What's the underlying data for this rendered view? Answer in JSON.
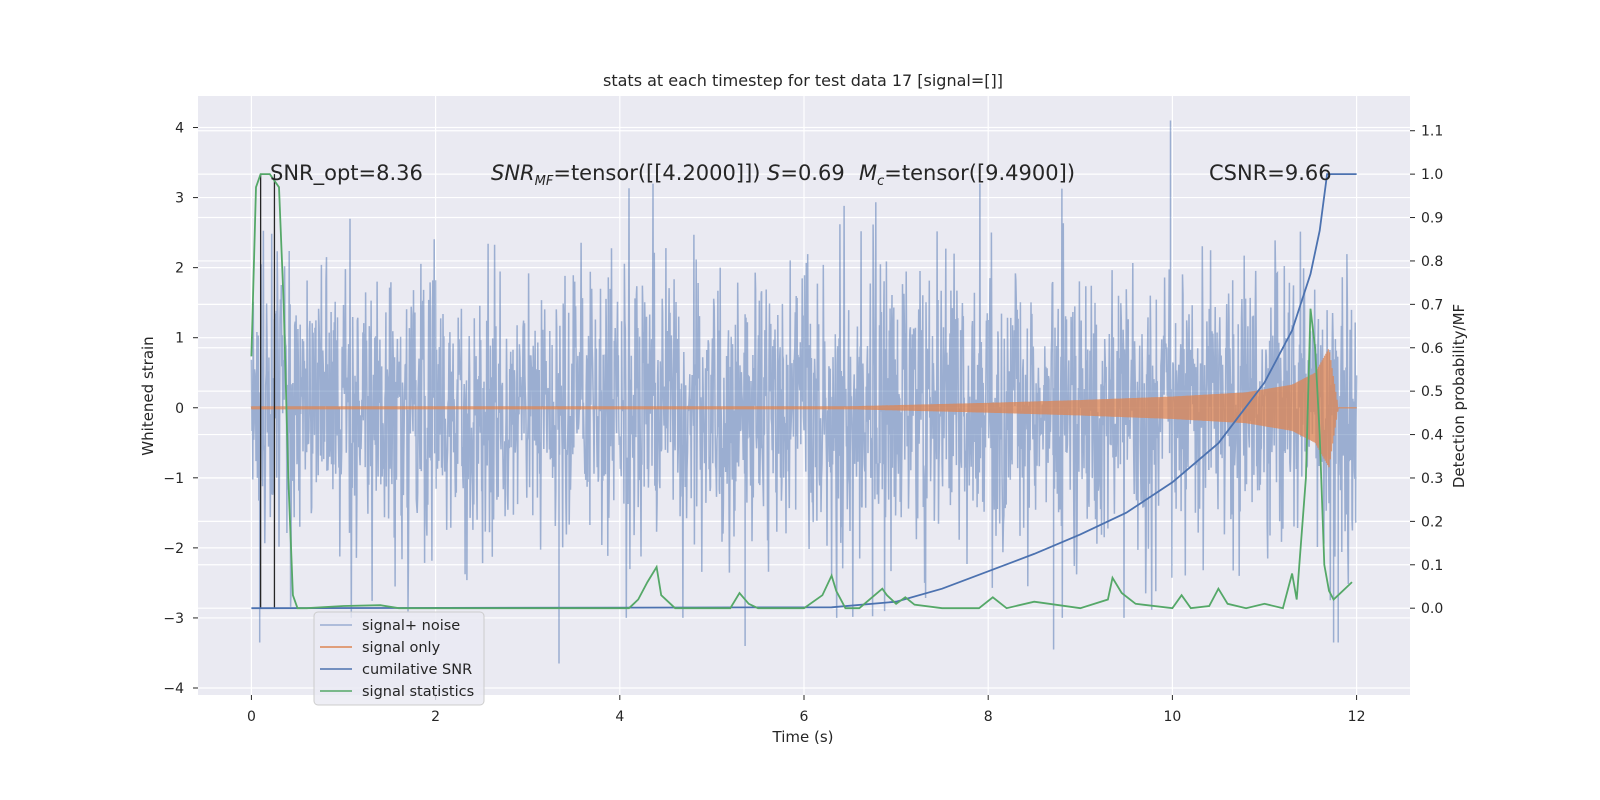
{
  "chart_data": {
    "type": "line",
    "title": "stats at each timestep for test data 17 [signal=[]]",
    "xlabel": "Time (s)",
    "ylabel": "Whitened strain",
    "ylabel_right": "Detection probability/MF",
    "xlim": [
      -0.58,
      12.58
    ],
    "ylim": [
      -4.1,
      4.45
    ],
    "ylim_right": [
      -0.2,
      1.18
    ],
    "x_ticks": [
      0,
      2,
      4,
      6,
      8,
      10,
      12
    ],
    "y_ticks": [
      -4,
      -3,
      -2,
      -1,
      0,
      1,
      2,
      3,
      4
    ],
    "y_ticks_right": [
      0.0,
      0.1,
      0.2,
      0.3,
      0.4,
      0.5,
      0.6,
      0.7,
      0.8,
      0.9,
      1.0,
      1.1
    ],
    "grid": true,
    "legend_position": "lower-left",
    "annotations": [
      {
        "text": "SNR_opt=8.36"
      },
      {
        "text_pre": "SNR",
        "text_sub": "MF",
        "text_post": "=tensor([[4.2000]])"
      },
      {
        "text_pre": "S",
        "text_sub": "",
        "text_post": "=0.69"
      },
      {
        "text_pre": "M",
        "text_sub": "c",
        "text_post": "=tensor([9.4900])"
      },
      {
        "text": "CSNR=9.66"
      }
    ],
    "vlines": [
      0.1,
      0.25
    ],
    "series": [
      {
        "name": "signal+ noise",
        "axis": "left",
        "color": "#4c72b0",
        "opacity": 0.5,
        "x_range": [
          0,
          12
        ],
        "band_envelope": [
          1.6,
          -1.6
        ],
        "sample_spikes": [
          {
            "x": 0.09,
            "y": -3.35
          },
          {
            "x": 3.34,
            "y": -3.65
          },
          {
            "x": 5.36,
            "y": -3.4
          },
          {
            "x": 8.71,
            "y": -3.45
          },
          {
            "x": 9.98,
            "y": 4.1
          },
          {
            "x": 11.75,
            "y": -3.35
          },
          {
            "x": 11.8,
            "y": -3.35
          }
        ]
      },
      {
        "name": "signal only",
        "axis": "left",
        "color": "#dd8452",
        "x_range": [
          0,
          12
        ],
        "envelope": {
          "x": [
            0,
            6.5,
            8,
            9,
            10,
            10.8,
            11.3,
            11.55,
            11.7,
            11.8,
            12
          ],
          "amplitude": [
            0.02,
            0.02,
            0.07,
            0.11,
            0.16,
            0.22,
            0.33,
            0.5,
            0.85,
            0.0,
            0.0
          ]
        }
      },
      {
        "name": "cumilative SNR",
        "axis": "right",
        "color": "#4c72b0",
        "x": [
          0,
          6.3,
          7.0,
          7.5,
          8.0,
          8.5,
          9.0,
          9.5,
          10.0,
          10.5,
          11.0,
          11.3,
          11.5,
          11.6,
          11.68,
          12.0
        ],
        "y": [
          0.0,
          0.002,
          0.015,
          0.045,
          0.085,
          0.125,
          0.17,
          0.22,
          0.29,
          0.38,
          0.52,
          0.64,
          0.77,
          0.87,
          1.0,
          1.0
        ]
      },
      {
        "name": "signal statistics",
        "axis": "right",
        "color": "#55a868",
        "x": [
          0.0,
          0.05,
          0.1,
          0.2,
          0.3,
          0.35,
          0.4,
          0.45,
          0.5,
          0.6,
          1.0,
          1.4,
          1.6,
          4.1,
          4.2,
          4.3,
          4.4,
          4.45,
          4.6,
          5.2,
          5.3,
          5.4,
          5.5,
          6.0,
          6.2,
          6.3,
          6.35,
          6.45,
          6.6,
          6.85,
          6.9,
          7.0,
          7.1,
          7.2,
          7.5,
          7.9,
          8.05,
          8.2,
          8.5,
          9.0,
          9.3,
          9.35,
          9.45,
          9.6,
          10.0,
          10.1,
          10.2,
          10.4,
          10.5,
          10.6,
          10.8,
          11.0,
          11.2,
          11.3,
          11.35,
          11.45,
          11.5,
          11.55,
          11.6,
          11.65,
          11.7,
          11.75,
          11.8,
          11.9,
          11.95
        ],
        "y": [
          0.58,
          0.97,
          1.0,
          1.0,
          0.97,
          0.7,
          0.3,
          0.03,
          0.0,
          0.0,
          0.005,
          0.007,
          0.0,
          0.0,
          0.02,
          0.06,
          0.095,
          0.03,
          0.0,
          0.0,
          0.035,
          0.01,
          0.0,
          0.0,
          0.03,
          0.075,
          0.04,
          0.0,
          0.0,
          0.045,
          0.03,
          0.01,
          0.025,
          0.008,
          0.0,
          0.0,
          0.025,
          0.0,
          0.015,
          0.0,
          0.02,
          0.07,
          0.035,
          0.01,
          0.0,
          0.03,
          0.0,
          0.005,
          0.045,
          0.01,
          0.0,
          0.01,
          0.0,
          0.08,
          0.02,
          0.3,
          0.69,
          0.6,
          0.4,
          0.1,
          0.04,
          0.02,
          0.03,
          0.05,
          0.06
        ]
      }
    ]
  }
}
